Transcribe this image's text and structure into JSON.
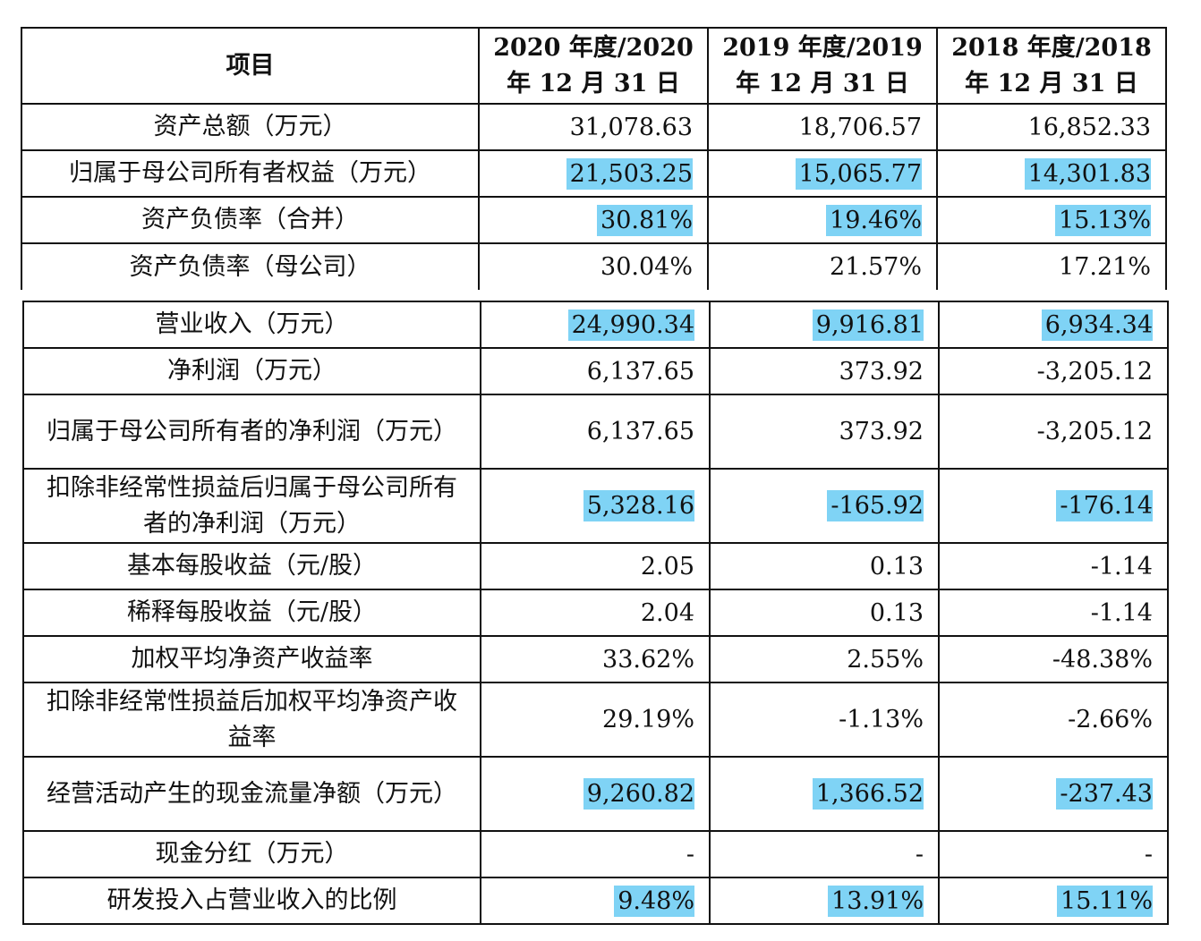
{
  "header": {
    "item": "项目",
    "cols": [
      "2020 年度/2020 年 12 月 31 日",
      "2019 年度/2019 年 12 月 31 日",
      "2018 年度/2018 年 12 月 31 日"
    ]
  },
  "highlight_color": "#7fd3f5",
  "table1": [
    {
      "label": "资产总额（万元）",
      "values": [
        "31,078.63",
        "18,706.57",
        "16,852.33"
      ],
      "highlight": false
    },
    {
      "label": "归属于母公司所有者权益（万元）",
      "values": [
        "21,503.25",
        "15,065.77",
        "14,301.83"
      ],
      "highlight": true
    },
    {
      "label": "资产负债率（合并）",
      "values": [
        "30.81%",
        "19.46%",
        "15.13%"
      ],
      "highlight": true
    },
    {
      "label": "资产负债率（母公司）",
      "values": [
        "30.04%",
        "21.57%",
        "17.21%"
      ],
      "highlight": false
    }
  ],
  "table2": [
    {
      "label": "营业收入（万元）",
      "values": [
        "24,990.34",
        "9,916.81",
        "6,934.34"
      ],
      "highlight": true
    },
    {
      "label": "净利润（万元）",
      "values": [
        "6,137.65",
        "373.92",
        "-3,205.12"
      ],
      "highlight": false
    },
    {
      "label": "归属于母公司所有者的净利润（万元）",
      "values": [
        "6,137.65",
        "373.92",
        "-3,205.12"
      ],
      "highlight": false,
      "tall": true
    },
    {
      "label": "扣除非经常性损益后归属于母公司所有者的净利润（万元）",
      "values": [
        "5,328.16",
        "-165.92",
        "-176.14"
      ],
      "highlight": true,
      "tall": true
    },
    {
      "label": "基本每股收益（元/股）",
      "values": [
        "2.05",
        "0.13",
        "-1.14"
      ],
      "highlight": false
    },
    {
      "label": "稀释每股收益（元/股）",
      "values": [
        "2.04",
        "0.13",
        "-1.14"
      ],
      "highlight": false
    },
    {
      "label": "加权平均净资产收益率",
      "values": [
        "33.62%",
        "2.55%",
        "-48.38%"
      ],
      "highlight": false
    },
    {
      "label": "扣除非经常性损益后加权平均净资产收益率",
      "values": [
        "29.19%",
        "-1.13%",
        "-2.66%"
      ],
      "highlight": false,
      "tall": true
    },
    {
      "label": "经营活动产生的现金流量净额（万元）",
      "values": [
        "9,260.82",
        "1,366.52",
        "-237.43"
      ],
      "highlight": true,
      "tall": true
    },
    {
      "label": "现金分红（万元）",
      "values": [
        "-",
        "-",
        "-"
      ],
      "highlight": false
    },
    {
      "label": "研发投入占营业收入的比例",
      "values": [
        "9.48%",
        "13.91%",
        "15.11%"
      ],
      "highlight": true
    }
  ]
}
